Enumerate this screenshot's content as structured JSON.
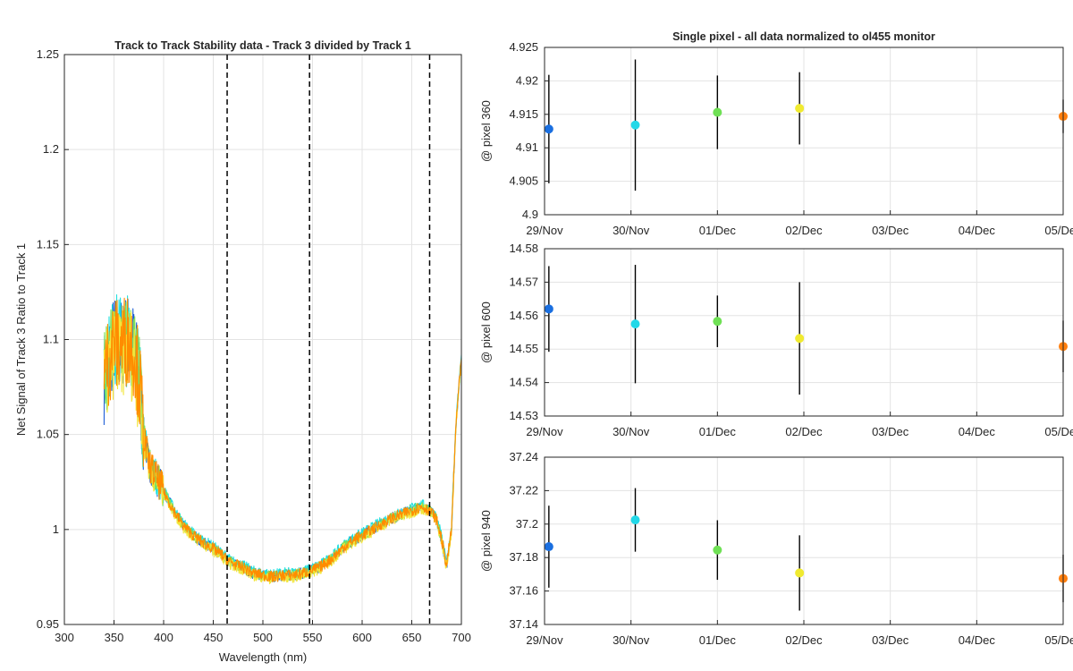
{
  "chart_data": [
    {
      "type": "line",
      "title": "Track to Track Stability data - Track 3 divided by Track 1",
      "xlabel": "Wavelength (nm)",
      "ylabel": "Net Signal of Track 3 Ratio to Track 1",
      "xlim": [
        300,
        700
      ],
      "ylim": [
        0.95,
        1.25
      ],
      "xticks": [
        300,
        350,
        400,
        450,
        500,
        550,
        600,
        650,
        700
      ],
      "yticks": [
        0.95,
        1,
        1.05,
        1.1,
        1.15,
        1.2,
        1.25
      ],
      "xtick_labels": [
        "300",
        "350",
        "400",
        "450",
        "500",
        "550",
        "600",
        "650",
        "700"
      ],
      "ytick_labels": [
        "0.95",
        "1",
        "1.05",
        "1.1",
        "1.15",
        "1.2",
        "1.25"
      ],
      "grid": true,
      "vertical_markers": [
        464,
        547,
        668
      ],
      "series": [
        {
          "color": "#1f5fd6",
          "x": [
            340,
            345,
            350,
            355,
            360,
            365,
            370,
            375,
            380,
            385,
            390,
            400,
            410,
            420,
            430,
            440,
            450,
            460,
            464,
            470,
            480,
            490,
            500,
            510,
            520,
            530,
            540,
            547,
            560,
            570,
            580,
            590,
            600,
            610,
            620,
            630,
            640,
            650,
            660,
            665,
            670,
            675,
            680,
            685,
            690,
            695,
            700
          ],
          "y": [
            1.08,
            1.09,
            1.1,
            1.095,
            1.1,
            1.1,
            1.095,
            1.08,
            1.05,
            1.035,
            1.03,
            1.02,
            1.01,
            1.002,
            0.997,
            0.993,
            0.99,
            0.986,
            0.984,
            0.982,
            0.98,
            0.977,
            0.976,
            0.975,
            0.976,
            0.976,
            0.977,
            0.978,
            0.981,
            0.985,
            0.99,
            0.994,
            0.997,
            1.0,
            1.003,
            1.006,
            1.008,
            1.01,
            1.012,
            1.011,
            1.009,
            1.005,
            0.995,
            0.981,
            1.0,
            1.06,
            1.09
          ]
        },
        {
          "color": "#1fe0e0",
          "x": [
            340,
            345,
            350,
            355,
            360,
            365,
            370,
            375,
            380,
            385,
            390,
            400,
            410,
            420,
            430,
            440,
            450,
            460,
            464,
            470,
            480,
            490,
            500,
            510,
            520,
            530,
            540,
            547,
            560,
            570,
            580,
            590,
            600,
            610,
            620,
            630,
            640,
            650,
            660,
            665,
            670,
            675,
            680,
            685,
            690,
            695,
            700
          ],
          "y": [
            1.085,
            1.09,
            1.1,
            1.1,
            1.1,
            1.1,
            1.1,
            1.085,
            1.05,
            1.036,
            1.03,
            1.021,
            1.011,
            1.003,
            0.998,
            0.994,
            0.991,
            0.987,
            0.985,
            0.983,
            0.981,
            0.978,
            0.977,
            0.976,
            0.977,
            0.977,
            0.978,
            0.979,
            0.982,
            0.986,
            0.991,
            0.995,
            0.998,
            1.001,
            1.004,
            1.007,
            1.009,
            1.011,
            1.013,
            1.012,
            1.01,
            1.006,
            0.996,
            0.982,
            1.001,
            1.061,
            1.092
          ]
        },
        {
          "color": "#7ee05a",
          "x": [
            340,
            345,
            350,
            355,
            360,
            365,
            370,
            375,
            380,
            385,
            390,
            400,
            410,
            420,
            430,
            440,
            450,
            460,
            464,
            470,
            480,
            490,
            500,
            510,
            520,
            530,
            540,
            547,
            560,
            570,
            580,
            590,
            600,
            610,
            620,
            630,
            640,
            650,
            660,
            665,
            670,
            675,
            680,
            685,
            690,
            695,
            700
          ],
          "y": [
            1.08,
            1.088,
            1.098,
            1.095,
            1.098,
            1.098,
            1.095,
            1.08,
            1.05,
            1.035,
            1.03,
            1.02,
            1.01,
            1.002,
            0.997,
            0.993,
            0.99,
            0.986,
            0.984,
            0.982,
            0.98,
            0.977,
            0.976,
            0.975,
            0.976,
            0.976,
            0.977,
            0.978,
            0.981,
            0.985,
            0.99,
            0.994,
            0.997,
            1.0,
            1.003,
            1.006,
            1.008,
            1.01,
            1.012,
            1.011,
            1.009,
            1.005,
            0.995,
            0.981,
            1.0,
            1.06,
            1.09
          ]
        },
        {
          "color": "#f2e63a",
          "x": [
            340,
            345,
            350,
            355,
            360,
            365,
            370,
            375,
            380,
            385,
            390,
            400,
            410,
            420,
            430,
            440,
            450,
            460,
            464,
            470,
            480,
            490,
            500,
            510,
            520,
            530,
            540,
            547,
            560,
            570,
            580,
            590,
            600,
            610,
            620,
            630,
            640,
            650,
            660,
            665,
            670,
            675,
            680,
            685,
            690,
            695,
            700
          ],
          "y": [
            1.075,
            1.085,
            1.095,
            1.09,
            1.095,
            1.095,
            1.09,
            1.075,
            1.048,
            1.034,
            1.029,
            1.019,
            1.009,
            1.001,
            0.996,
            0.992,
            0.989,
            0.985,
            0.983,
            0.981,
            0.979,
            0.976,
            0.975,
            0.974,
            0.975,
            0.975,
            0.976,
            0.977,
            0.98,
            0.984,
            0.989,
            0.993,
            0.996,
            0.999,
            1.002,
            1.005,
            1.007,
            1.009,
            1.011,
            1.01,
            1.008,
            1.004,
            0.994,
            0.98,
            0.999,
            1.059,
            1.089
          ]
        },
        {
          "color": "#ff8c00",
          "x": [
            340,
            345,
            350,
            355,
            360,
            365,
            370,
            375,
            380,
            385,
            390,
            400,
            410,
            420,
            430,
            440,
            450,
            460,
            464,
            470,
            480,
            490,
            500,
            510,
            520,
            530,
            540,
            547,
            560,
            570,
            580,
            590,
            600,
            610,
            620,
            630,
            640,
            650,
            660,
            665,
            670,
            675,
            680,
            685,
            690,
            695,
            700
          ],
          "y": [
            1.08,
            1.09,
            1.1,
            1.095,
            1.1,
            1.1,
            1.095,
            1.08,
            1.05,
            1.035,
            1.03,
            1.02,
            1.01,
            1.002,
            0.997,
            0.993,
            0.99,
            0.986,
            0.984,
            0.982,
            0.98,
            0.977,
            0.976,
            0.975,
            0.976,
            0.976,
            0.977,
            0.978,
            0.981,
            0.985,
            0.99,
            0.994,
            0.997,
            1.0,
            1.003,
            1.006,
            1.008,
            1.01,
            1.012,
            1.011,
            1.009,
            1.005,
            0.995,
            0.981,
            1.0,
            1.06,
            1.09
          ]
        }
      ]
    },
    {
      "type": "scatter",
      "title": "Single pixel - all data normalized to ol455 monitor",
      "xlabel": "",
      "ylabel": "@ pixel 360",
      "xticks": [
        "29/Nov",
        "30/Nov",
        "01/Dec",
        "02/Dec",
        "03/Dec",
        "04/Dec",
        "05/Dec"
      ],
      "xlim": [
        0,
        6
      ],
      "ylim": [
        4.9,
        4.925
      ],
      "yticks": [
        4.9,
        4.905,
        4.91,
        4.915,
        4.92,
        4.925
      ],
      "ytick_labels": [
        "4.9",
        "4.905",
        "4.91",
        "4.915",
        "4.92",
        "4.925"
      ],
      "grid": true,
      "points": [
        {
          "x": 0.05,
          "y": 4.9128,
          "err": 0.0081,
          "color": "#1a6fe0"
        },
        {
          "x": 1.05,
          "y": 4.9134,
          "err": 0.0098,
          "color": "#22d8e8"
        },
        {
          "x": 2.0,
          "y": 4.9153,
          "err": 0.0055,
          "color": "#6fe055"
        },
        {
          "x": 2.95,
          "y": 4.9159,
          "err": 0.0054,
          "color": "#f0ea30"
        },
        {
          "x": 6.0,
          "y": 4.9147,
          "err": 0.0025,
          "color": "#ff7f0e"
        }
      ]
    },
    {
      "type": "scatter",
      "xlabel": "",
      "ylabel": "@ pixel 600",
      "xticks": [
        "29/Nov",
        "30/Nov",
        "01/Dec",
        "02/Dec",
        "03/Dec",
        "04/Dec",
        "05/Dec"
      ],
      "xlim": [
        0,
        6
      ],
      "ylim": [
        14.53,
        14.58
      ],
      "yticks": [
        14.53,
        14.54,
        14.55,
        14.56,
        14.57,
        14.58
      ],
      "ytick_labels": [
        "14.53",
        "14.54",
        "14.55",
        "14.56",
        "14.57",
        "14.58"
      ],
      "grid": true,
      "points": [
        {
          "x": 0.05,
          "y": 14.562,
          "err": 0.0128,
          "color": "#1a6fe0"
        },
        {
          "x": 1.05,
          "y": 14.5575,
          "err": 0.0177,
          "color": "#22d8e8"
        },
        {
          "x": 2.0,
          "y": 14.5583,
          "err": 0.0077,
          "color": "#6fe055"
        },
        {
          "x": 2.95,
          "y": 14.5532,
          "err": 0.0168,
          "color": "#f0ea30"
        },
        {
          "x": 6.0,
          "y": 14.5508,
          "err": 0.0077,
          "color": "#ff7f0e"
        }
      ]
    },
    {
      "type": "scatter",
      "xlabel": "",
      "ylabel": "@ pixel 940",
      "xticks": [
        "29/Nov",
        "30/Nov",
        "01/Dec",
        "02/Dec",
        "03/Dec",
        "04/Dec",
        "05/Dec"
      ],
      "xlim": [
        0,
        6
      ],
      "ylim": [
        37.14,
        37.24
      ],
      "yticks": [
        37.14,
        37.16,
        37.18,
        37.2,
        37.22,
        37.24
      ],
      "ytick_labels": [
        "37.14",
        "37.16",
        "37.18",
        "37.2",
        "37.22",
        "37.24"
      ],
      "grid": true,
      "points": [
        {
          "x": 0.05,
          "y": 37.1865,
          "err": 0.0245,
          "color": "#1a6fe0"
        },
        {
          "x": 1.05,
          "y": 37.2025,
          "err": 0.019,
          "color": "#22d8e8"
        },
        {
          "x": 2.0,
          "y": 37.1845,
          "err": 0.0178,
          "color": "#6fe055"
        },
        {
          "x": 2.95,
          "y": 37.1708,
          "err": 0.0225,
          "color": "#f0ea30"
        },
        {
          "x": 6.0,
          "y": 37.1675,
          "err": 0.0142,
          "color": "#ff7f0e"
        }
      ]
    }
  ]
}
